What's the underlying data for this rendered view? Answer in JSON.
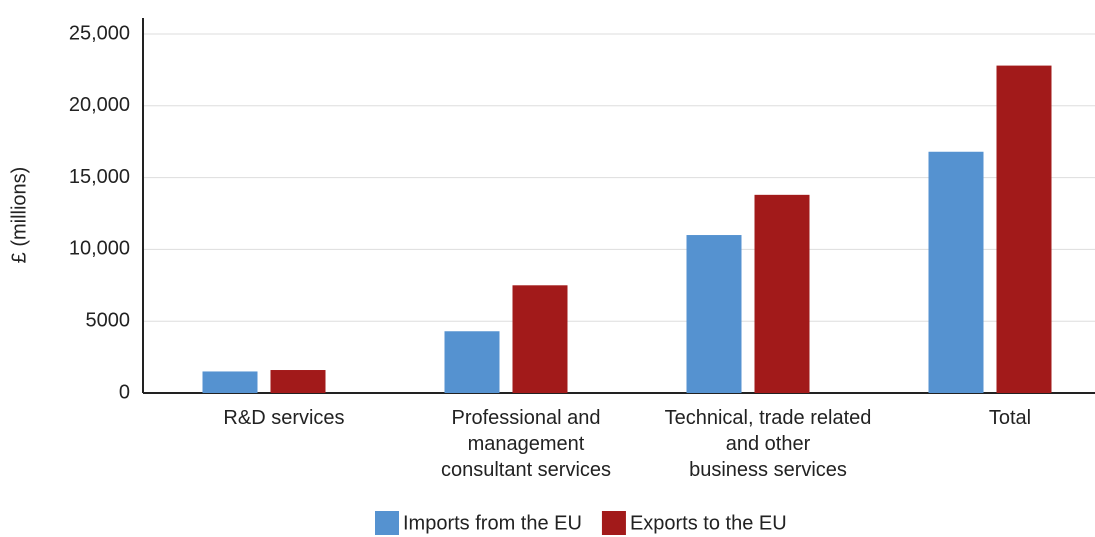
{
  "chart_data": {
    "type": "bar",
    "categories": [
      "R&D services",
      "Professional and\nmanagement\nconsultant services",
      "Technical, trade related\nand other\nbusiness services",
      "Total"
    ],
    "series": [
      {
        "name": "Imports from the EU",
        "color": "#5592d0",
        "values": [
          1500,
          4300,
          11000,
          16800
        ]
      },
      {
        "name": "Exports to the EU",
        "color": "#a21a1a",
        "values": [
          1600,
          7500,
          13800,
          22800
        ]
      }
    ],
    "ylabel": "£ (millions)",
    "ylim": [
      0,
      25000
    ],
    "yticks": [
      0,
      5000,
      {
        "value": 10000,
        "label": "10,000"
      },
      {
        "value": 15000,
        "label": "15,000"
      },
      {
        "value": 20000,
        "label": "20,000"
      },
      {
        "value": 25000,
        "label": "25,000"
      }
    ],
    "grid": true
  }
}
